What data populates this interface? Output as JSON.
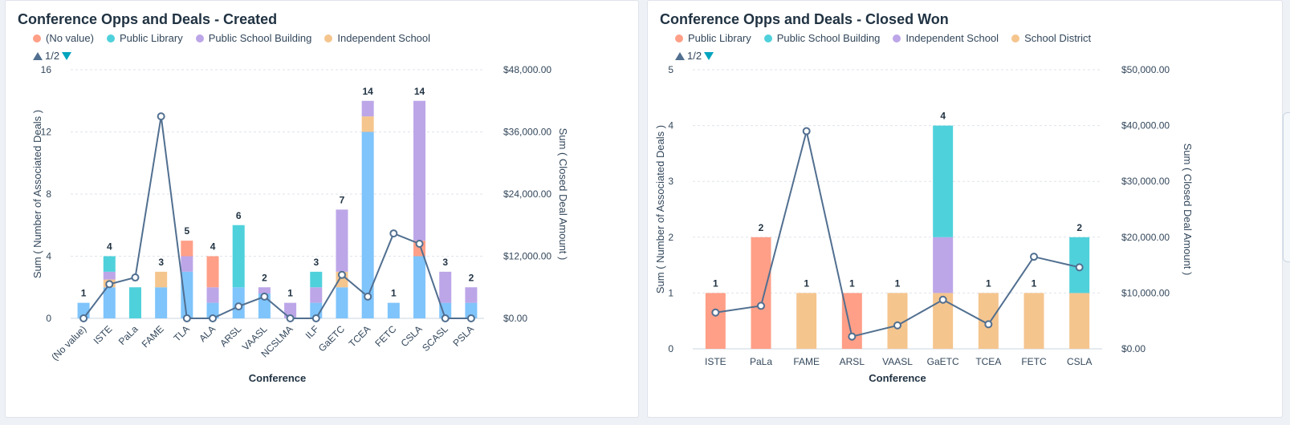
{
  "colors": {
    "no_value": "#ff9f87",
    "public_library": "#ff9f87",
    "teal": "#4fd1db",
    "purple": "#bca6e8",
    "orange": "#f5c58e",
    "blue": "#7fc4fb",
    "line": "#516f90"
  },
  "pager": {
    "label": "1/2",
    "up_icon": "triangle-up-icon",
    "down_icon": "triangle-down-icon"
  },
  "chart_data": [
    {
      "type": "bar",
      "title": "Conference Opps and Deals - Created",
      "xlabel": "Conference",
      "ylabel": "Sum ( Number of Associated Deals )",
      "y2label": "Sum ( Closed Deal Amount )",
      "ylim": [
        0,
        16
      ],
      "yticks": [
        "0",
        "4",
        "8",
        "12",
        "16"
      ],
      "y2lim": [
        0,
        48000
      ],
      "y2ticks": [
        "$0.00",
        "$12,000.00",
        "$24,000.00",
        "$36,000.00",
        "$48,000.00"
      ],
      "legend": [
        {
          "name": "(No value)",
          "color": "#ff9f87"
        },
        {
          "name": "Public Library",
          "color": "#4fd1db"
        },
        {
          "name": "Public School Building",
          "color": "#bca6e8"
        },
        {
          "name": "Independent School",
          "color": "#f5c58e"
        }
      ],
      "categories": [
        "(No value)",
        "ISTE",
        "PaLa",
        "FAME",
        "TLA",
        "ALA",
        "ARSL",
        "VAASL",
        "NCSLMA",
        "ILF",
        "GaETC",
        "TCEA",
        "FETC",
        "CSLA",
        "SCASL",
        "PSLA"
      ],
      "totals": [
        "1",
        "4",
        "2",
        "3",
        "5",
        "4",
        "6",
        "2",
        "1",
        "3",
        "7",
        "14",
        "1",
        "14",
        "3",
        "2"
      ],
      "stacks": [
        [
          {
            "v": 1,
            "c": "#7fc4fb"
          }
        ],
        [
          {
            "v": 2,
            "c": "#7fc4fb"
          },
          {
            "v": 0.5,
            "c": "#f5c58e"
          },
          {
            "v": 0.5,
            "c": "#bca6e8"
          },
          {
            "v": 1,
            "c": "#4fd1db"
          }
        ],
        [
          {
            "v": 2,
            "c": "#4fd1db"
          }
        ],
        [
          {
            "v": 2,
            "c": "#7fc4fb"
          },
          {
            "v": 1,
            "c": "#f5c58e"
          }
        ],
        [
          {
            "v": 3,
            "c": "#7fc4fb"
          },
          {
            "v": 1,
            "c": "#bca6e8"
          },
          {
            "v": 1,
            "c": "#ff9f87"
          }
        ],
        [
          {
            "v": 1,
            "c": "#7fc4fb"
          },
          {
            "v": 1,
            "c": "#bca6e8"
          },
          {
            "v": 2,
            "c": "#ff9f87"
          }
        ],
        [
          {
            "v": 2,
            "c": "#7fc4fb"
          },
          {
            "v": 4,
            "c": "#4fd1db"
          }
        ],
        [
          {
            "v": 1.6,
            "c": "#7fc4fb"
          },
          {
            "v": 0.4,
            "c": "#bca6e8"
          }
        ],
        [
          {
            "v": 1,
            "c": "#bca6e8"
          }
        ],
        [
          {
            "v": 1,
            "c": "#7fc4fb"
          },
          {
            "v": 1,
            "c": "#bca6e8"
          },
          {
            "v": 1,
            "c": "#4fd1db"
          }
        ],
        [
          {
            "v": 2,
            "c": "#7fc4fb"
          },
          {
            "v": 1,
            "c": "#f5c58e"
          },
          {
            "v": 4,
            "c": "#bca6e8"
          }
        ],
        [
          {
            "v": 12,
            "c": "#7fc4fb"
          },
          {
            "v": 1,
            "c": "#f5c58e"
          },
          {
            "v": 1,
            "c": "#bca6e8"
          }
        ],
        [
          {
            "v": 1,
            "c": "#7fc4fb"
          }
        ],
        [
          {
            "v": 4,
            "c": "#7fc4fb"
          },
          {
            "v": 1,
            "c": "#ff9f87"
          },
          {
            "v": 9,
            "c": "#bca6e8"
          }
        ],
        [
          {
            "v": 1,
            "c": "#7fc4fb"
          },
          {
            "v": 2,
            "c": "#bca6e8"
          }
        ],
        [
          {
            "v": 1,
            "c": "#7fc4fb"
          },
          {
            "v": 1,
            "c": "#bca6e8"
          }
        ]
      ],
      "line": [
        0,
        6600,
        7900,
        39000,
        0,
        0,
        2300,
        4200,
        0,
        0,
        8400,
        4200,
        16400,
        14400,
        0,
        0
      ]
    },
    {
      "type": "bar",
      "title": "Conference Opps and Deals - Closed Won",
      "xlabel": "Conference",
      "ylabel": "Sum ( Number of Associated Deals )",
      "y2label": "Sum ( Closed Deal Amount )",
      "ylim": [
        0,
        5
      ],
      "yticks": [
        "0",
        "1",
        "2",
        "3",
        "4",
        "5"
      ],
      "y2lim": [
        0,
        50000
      ],
      "y2ticks": [
        "$0.00",
        "$10,000.00",
        "$20,000.00",
        "$30,000.00",
        "$40,000.00",
        "$50,000.00"
      ],
      "legend": [
        {
          "name": "Public Library",
          "color": "#ff9f87"
        },
        {
          "name": "Public School Building",
          "color": "#4fd1db"
        },
        {
          "name": "Independent School",
          "color": "#bca6e8"
        },
        {
          "name": "School District",
          "color": "#f5c58e"
        }
      ],
      "categories": [
        "ISTE",
        "PaLa",
        "FAME",
        "ARSL",
        "VAASL",
        "GaETC",
        "TCEA",
        "FETC",
        "CSLA"
      ],
      "totals": [
        "1",
        "2",
        "1",
        "1",
        "1",
        "4",
        "1",
        "1",
        "2"
      ],
      "stacks": [
        [
          {
            "v": 1,
            "c": "#ff9f87"
          }
        ],
        [
          {
            "v": 2,
            "c": "#ff9f87"
          }
        ],
        [
          {
            "v": 1,
            "c": "#f5c58e"
          }
        ],
        [
          {
            "v": 1,
            "c": "#ff9f87"
          }
        ],
        [
          {
            "v": 1,
            "c": "#f5c58e"
          }
        ],
        [
          {
            "v": 1,
            "c": "#f5c58e"
          },
          {
            "v": 1,
            "c": "#bca6e8"
          },
          {
            "v": 2,
            "c": "#4fd1db"
          }
        ],
        [
          {
            "v": 1,
            "c": "#f5c58e"
          }
        ],
        [
          {
            "v": 1,
            "c": "#f5c58e"
          }
        ],
        [
          {
            "v": 1,
            "c": "#f5c58e"
          },
          {
            "v": 1,
            "c": "#4fd1db"
          }
        ]
      ],
      "line": [
        6500,
        7700,
        39000,
        2200,
        4200,
        8800,
        4400,
        16500,
        14600
      ]
    }
  ]
}
